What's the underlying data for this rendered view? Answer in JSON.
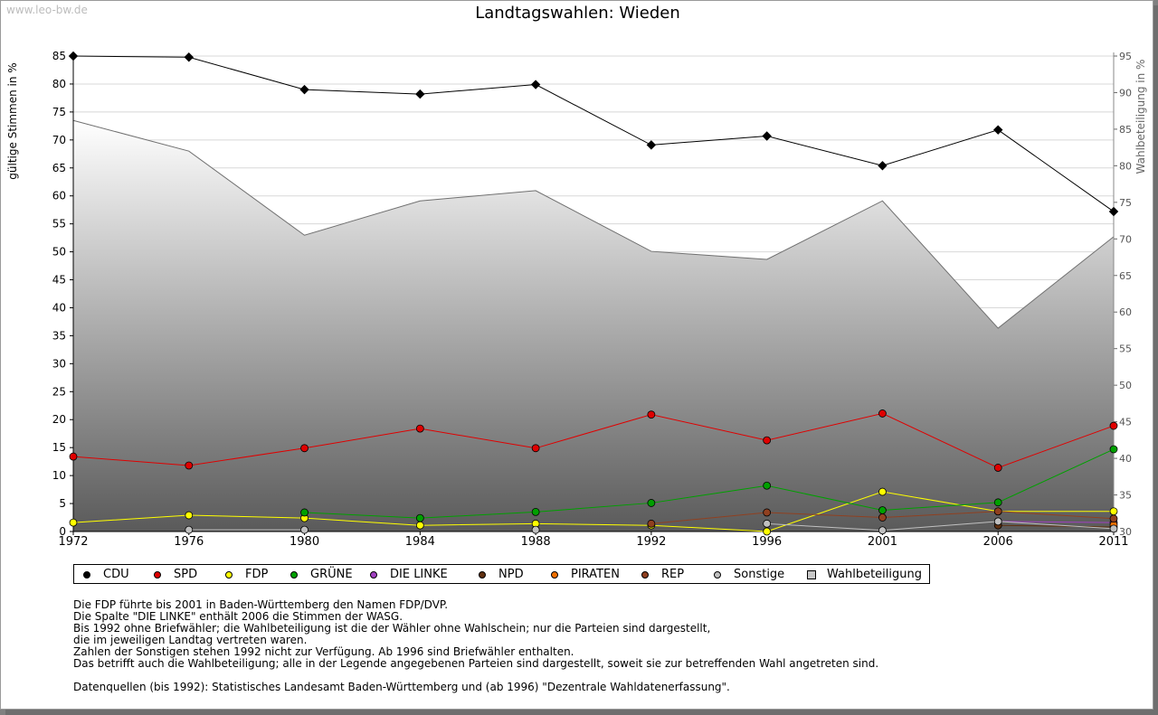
{
  "watermark": "www.leo-bw.de",
  "chart_data": {
    "type": "line",
    "title": "Landtagswahlen: Wieden",
    "ylabel": "gültige Stimmen in %",
    "ylabel_right": "Wahlbeteiligung in %",
    "ylim": [
      0,
      85
    ],
    "ylim_right": [
      30,
      95
    ],
    "y_ticks": [
      0,
      5,
      10,
      15,
      20,
      25,
      30,
      35,
      40,
      45,
      50,
      55,
      60,
      65,
      70,
      75,
      80,
      85
    ],
    "y_ticks_right": [
      30,
      35,
      40,
      45,
      50,
      55,
      60,
      65,
      70,
      75,
      80,
      85,
      90,
      95
    ],
    "categories": [
      "1972",
      "1976",
      "1980",
      "1984",
      "1988",
      "1992",
      "1996",
      "2001",
      "2006",
      "2011"
    ],
    "turnout": {
      "name": "Wahlbeteiligung",
      "color": "#808080",
      "values": [
        86.2,
        82.0,
        70.5,
        75.2,
        76.6,
        68.3,
        67.2,
        75.2,
        57.8,
        70.3
      ]
    },
    "series": [
      {
        "name": "CDU",
        "color": "#000000",
        "values": [
          85.0,
          84.8,
          79.0,
          78.2,
          79.9,
          69.1,
          70.7,
          65.4,
          71.8,
          57.2
        ]
      },
      {
        "name": "SPD",
        "color": "#e00000",
        "values": [
          13.4,
          11.8,
          14.9,
          18.4,
          14.9,
          20.9,
          16.3,
          21.1,
          11.4,
          18.9
        ]
      },
      {
        "name": "FDP",
        "color": "#ffff00",
        "values": [
          1.6,
          2.9,
          2.4,
          1.1,
          1.4,
          1.1,
          0.0,
          7.1,
          3.6,
          3.6
        ]
      },
      {
        "name": "GRÜNE",
        "color": "#00a000",
        "values": [
          null,
          null,
          3.4,
          2.4,
          3.5,
          5.1,
          8.2,
          3.8,
          5.2,
          14.7
        ]
      },
      {
        "name": "DIE LINKE",
        "color": "#a040c0",
        "values": [
          null,
          null,
          null,
          null,
          null,
          null,
          null,
          null,
          1.8,
          1.6
        ]
      },
      {
        "name": "NPD",
        "color": "#603010",
        "values": [
          null,
          null,
          null,
          null,
          null,
          null,
          null,
          null,
          1.1,
          0.8
        ]
      },
      {
        "name": "PIRATEN",
        "color": "#f07000",
        "values": [
          null,
          null,
          null,
          null,
          null,
          null,
          null,
          null,
          null,
          1.2
        ]
      },
      {
        "name": "REP",
        "color": "#904020",
        "values": [
          null,
          null,
          null,
          null,
          null,
          1.4,
          3.4,
          2.5,
          3.6,
          2.3
        ]
      },
      {
        "name": "Sonstige",
        "color": "#c0c0c0",
        "values": [
          null,
          0.3,
          0.3,
          null,
          0.3,
          null,
          1.4,
          0.2,
          1.8,
          0.5
        ]
      }
    ]
  },
  "legend": [
    {
      "label": "CDU",
      "color": "#000000",
      "shape": "circle"
    },
    {
      "label": "SPD",
      "color": "#e00000",
      "shape": "circle"
    },
    {
      "label": "FDP",
      "color": "#ffff00",
      "shape": "circle"
    },
    {
      "label": "GRÜNE",
      "color": "#00a000",
      "shape": "circle"
    },
    {
      "label": "DIE LINKE",
      "color": "#a040c0",
      "shape": "circle"
    },
    {
      "label": "NPD",
      "color": "#603010",
      "shape": "circle"
    },
    {
      "label": "PIRATEN",
      "color": "#f07000",
      "shape": "circle"
    },
    {
      "label": "REP",
      "color": "#904020",
      "shape": "circle"
    },
    {
      "label": "Sonstige",
      "color": "#c0c0c0",
      "shape": "circle"
    },
    {
      "label": "Wahlbeteiligung",
      "color": "#c8c8c8",
      "shape": "square"
    }
  ],
  "notes": [
    "Die FDP führte bis 2001 in Baden-Württemberg den Namen FDP/DVP.",
    "Die Spalte \"DIE LINKE\" enthält 2006 die Stimmen der WASG.",
    "Bis 1992 ohne Briefwähler; die Wahlbeteiligung ist die der Wähler ohne Wahlschein; nur die Parteien sind dargestellt,",
    "die im jeweiligen Landtag vertreten waren.",
    "Zahlen der Sonstigen stehen 1992 nicht zur Verfügung. Ab 1996 sind Briefwähler enthalten.",
    "Das betrifft auch die Wahlbeteiligung; alle in der Legende angegebenen Parteien sind dargestellt, soweit sie zur betreffenden Wahl angetreten sind."
  ],
  "source": "Datenquellen (bis 1992): Statistisches Landesamt Baden-Württemberg und (ab 1996) \"Dezentrale Wahldatenerfassung\"."
}
